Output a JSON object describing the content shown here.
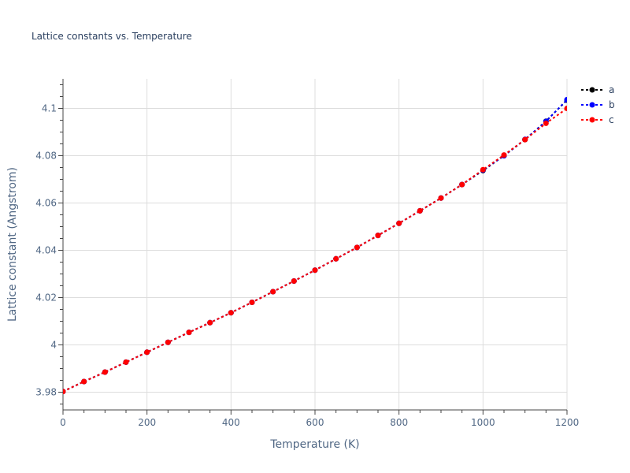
{
  "chart_data": {
    "type": "line",
    "title": "Lattice constants vs. Temperature",
    "xlabel": "Temperature (K)",
    "ylabel": "Lattice constant (Angstrom)",
    "xlim": [
      0,
      1200
    ],
    "ylim": [
      3.9725,
      4.1125
    ],
    "xticks": [
      0,
      200,
      400,
      600,
      800,
      1000,
      1200
    ],
    "xtick_labels": [
      "0",
      "200",
      "400",
      "600",
      "800",
      "1000",
      "1200"
    ],
    "yticks": [
      3.98,
      4.0,
      4.02,
      4.04,
      4.06,
      4.08,
      4.1
    ],
    "ytick_labels": [
      "3.98",
      "4",
      "4.02",
      "4.04",
      "4.06",
      "4.08",
      "4.1"
    ],
    "grid": true,
    "legend_position": "top-right",
    "x": [
      0,
      50,
      100,
      150,
      200,
      250,
      300,
      350,
      400,
      450,
      500,
      550,
      600,
      650,
      700,
      750,
      800,
      850,
      900,
      950,
      1000,
      1050,
      1100,
      1150,
      1200
    ],
    "series": [
      {
        "name": "a",
        "color": "#000000",
        "values": [
          3.9803,
          3.9845,
          3.9885,
          3.9927,
          3.9969,
          4.0011,
          4.0053,
          4.0094,
          4.0136,
          4.018,
          4.0225,
          4.027,
          4.0316,
          4.0364,
          4.0412,
          4.0463,
          4.0514,
          4.0567,
          4.0621,
          4.0678,
          4.0737,
          4.08,
          4.0868,
          4.0946,
          4.1035
        ]
      },
      {
        "name": "b",
        "color": "#0000ff",
        "values": [
          3.9803,
          3.9845,
          3.9885,
          3.9927,
          3.9969,
          4.0011,
          4.0053,
          4.0094,
          4.0136,
          4.018,
          4.0225,
          4.027,
          4.0316,
          4.0364,
          4.0412,
          4.0463,
          4.0514,
          4.0567,
          4.0621,
          4.0678,
          4.0739,
          4.08,
          4.0869,
          4.0945,
          4.1037
        ]
      },
      {
        "name": "c",
        "color": "#ff0000",
        "values": [
          3.9803,
          3.9845,
          3.9885,
          3.9927,
          3.9969,
          4.0011,
          4.0053,
          4.0094,
          4.0136,
          4.018,
          4.0225,
          4.027,
          4.0316,
          4.0364,
          4.0412,
          4.0463,
          4.0514,
          4.0567,
          4.0621,
          4.0678,
          4.0741,
          4.0803,
          4.0868,
          4.0937,
          4.1
        ]
      }
    ]
  }
}
